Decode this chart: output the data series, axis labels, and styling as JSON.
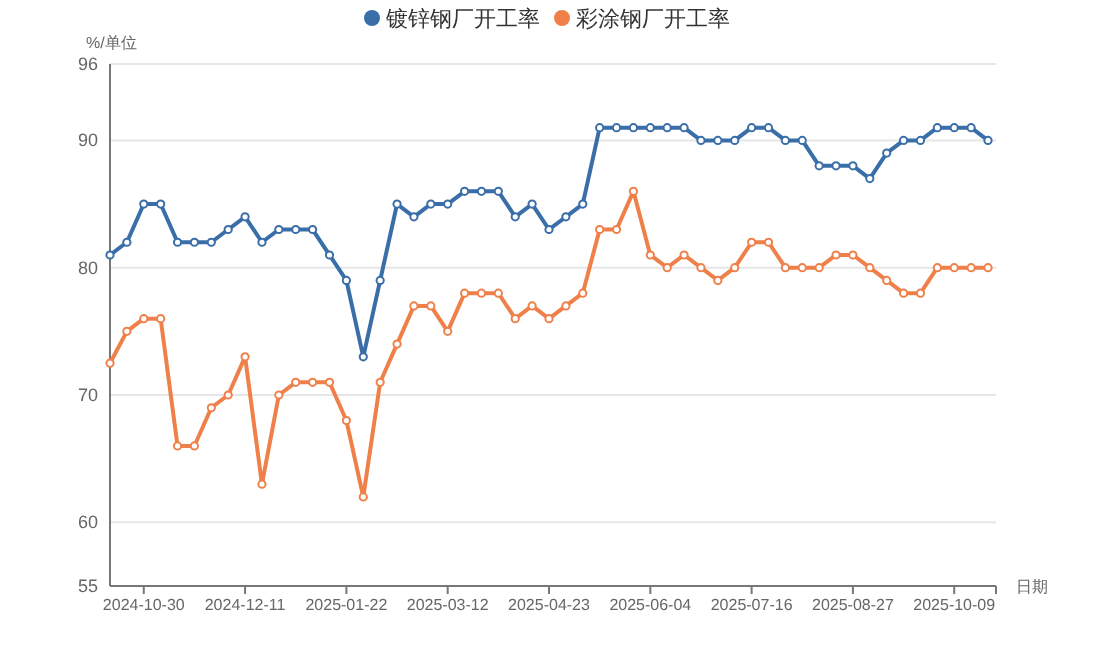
{
  "chart_data": {
    "type": "line",
    "categories": [
      null,
      null,
      "2024-10-30",
      null,
      null,
      null,
      null,
      null,
      "2024-12-11",
      null,
      null,
      null,
      null,
      null,
      "2025-01-22",
      null,
      null,
      null,
      null,
      null,
      "2025-03-12",
      null,
      null,
      null,
      null,
      null,
      "2025-04-23",
      null,
      null,
      null,
      null,
      null,
      "2025-06-04",
      null,
      null,
      null,
      null,
      null,
      "2025-07-16",
      null,
      null,
      null,
      null,
      null,
      "2025-08-27",
      null,
      null,
      null,
      null,
      null,
      "2025-10-09",
      null,
      null
    ],
    "series": [
      {
        "name": "镀锌钢厂开工率",
        "color": "#3a6ea8",
        "values": [
          81,
          82,
          85,
          85,
          82,
          82,
          82,
          83,
          84,
          82,
          83,
          83,
          83,
          81,
          79,
          73,
          79,
          85,
          84,
          85,
          85,
          86,
          86,
          86,
          84,
          85,
          83,
          84,
          85,
          91,
          91,
          91,
          91,
          91,
          91,
          90,
          90,
          90,
          91,
          91,
          90,
          90,
          88,
          88,
          88,
          87,
          89,
          90,
          90,
          91,
          91,
          91,
          90
        ]
      },
      {
        "name": "彩涂钢厂开工率",
        "color": "#f0804a",
        "values": [
          72.5,
          75,
          76,
          76,
          66,
          66,
          69,
          70,
          73,
          63,
          70,
          71,
          71,
          71,
          68,
          62,
          71,
          74,
          77,
          77,
          75,
          78,
          78,
          78,
          76,
          77,
          76,
          77,
          78,
          83,
          83,
          86,
          81,
          80,
          81,
          80,
          79,
          80,
          82,
          82,
          80,
          80,
          80,
          81,
          81,
          80,
          79,
          78,
          78,
          80,
          80,
          80,
          80
        ]
      }
    ],
    "ylim": [
      55,
      96
    ],
    "yticks": [
      55,
      60,
      70,
      80,
      90,
      96
    ],
    "ylabel": "%/单位",
    "xlabel": "日期",
    "grid": "y",
    "legend": "top",
    "marker": "circle",
    "line_style": "solid"
  }
}
